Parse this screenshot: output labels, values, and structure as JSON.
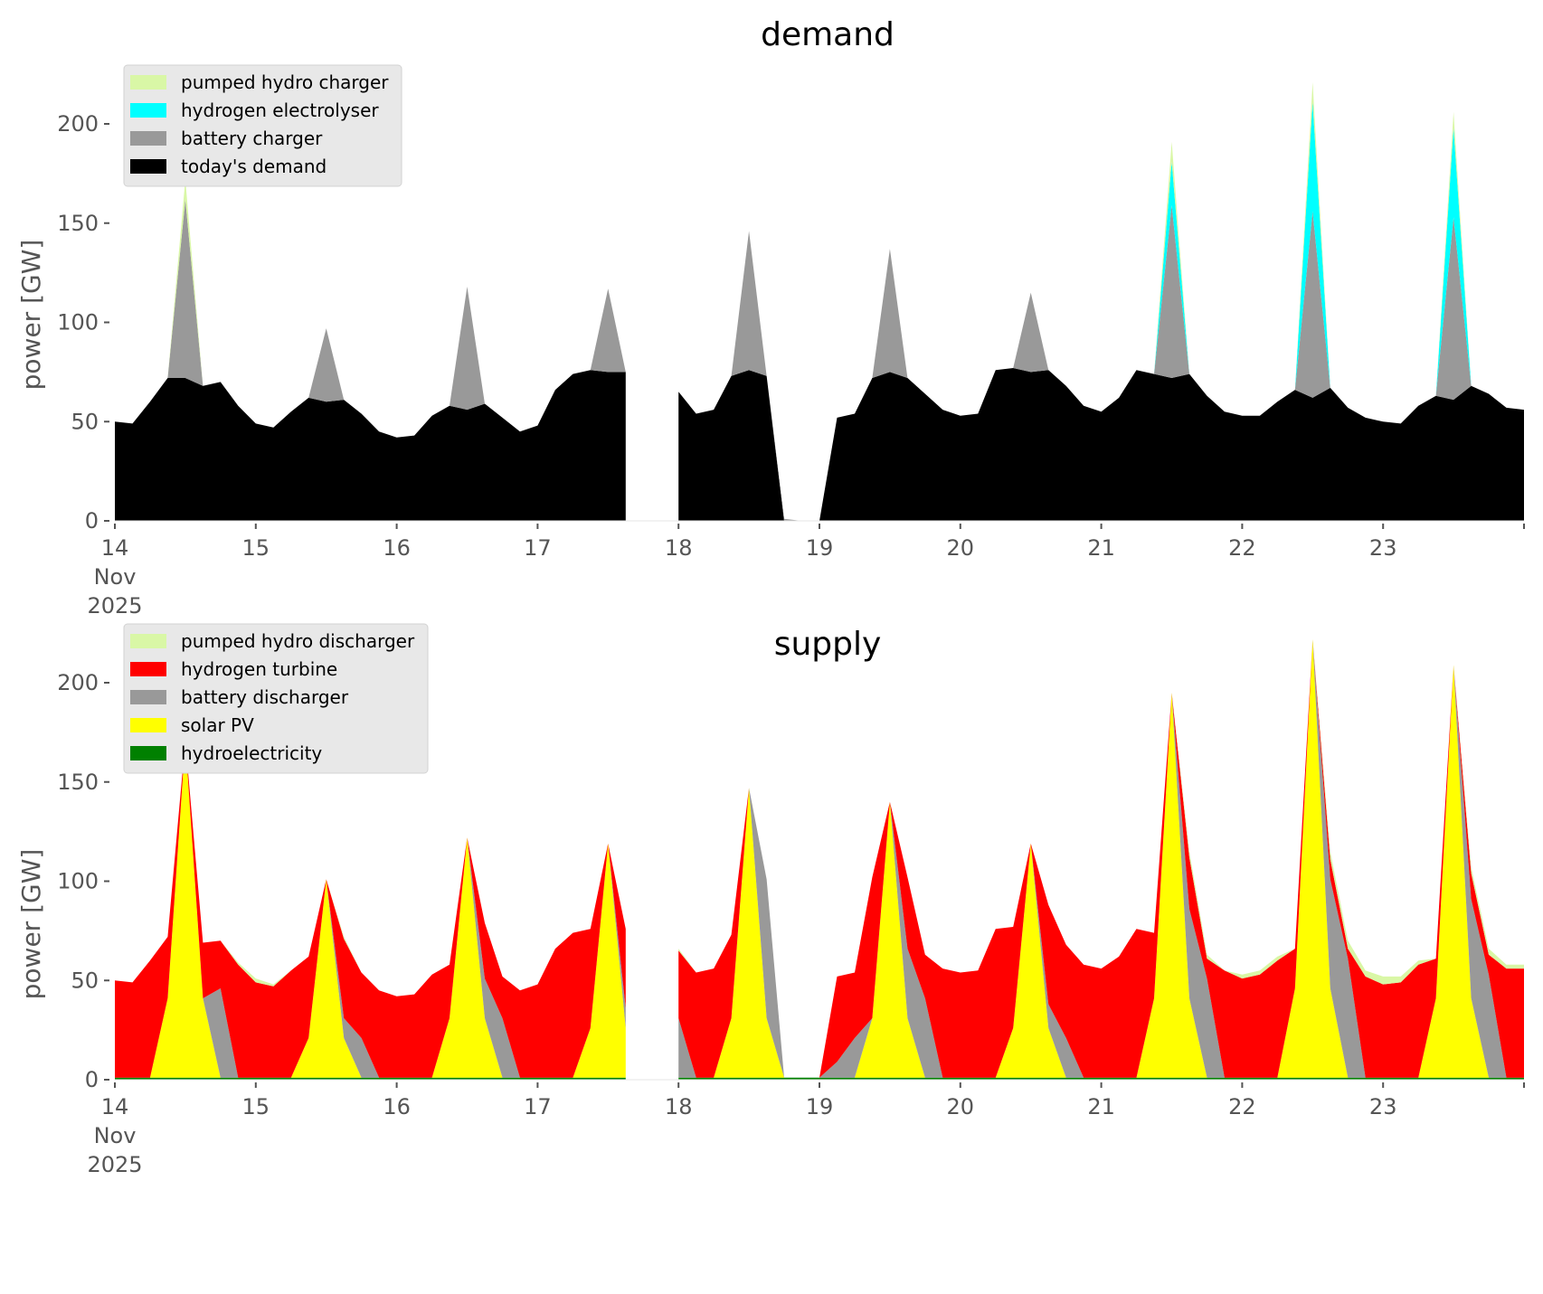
{
  "chart_data": [
    {
      "type": "area",
      "stacked": true,
      "title": "demand",
      "xlabel": "",
      "ylabel": "power [GW]",
      "x_unit": "day of Nov 2025 (3-hour steps from 14 Nov 00:00)",
      "x_start_day": 14,
      "x_end_day": 24,
      "step_hours": 3,
      "ylim": [
        0,
        228
      ],
      "yticks": [
        0,
        50,
        100,
        150,
        200
      ],
      "ytick_labels": [
        "0",
        "50",
        "100",
        "150",
        "200"
      ],
      "xticks": [
        14,
        15,
        16,
        17,
        18,
        19,
        20,
        21,
        22,
        23,
        24
      ],
      "xtick_labels": [
        "14\nNov\n2025",
        "15",
        "16",
        "17",
        "18",
        "19",
        "20",
        "21",
        "22",
        "23",
        ""
      ],
      "grid": false,
      "legend_position": "upper-left",
      "legend_order": [
        "pumped hydro charger",
        "hydrogen electrolyser",
        "battery charger",
        "today's demand"
      ],
      "series": [
        {
          "name": "today's demand",
          "color": "#000000",
          "values": [
            50,
            49,
            60,
            72,
            72,
            68,
            70,
            58,
            49,
            47,
            55,
            62,
            60,
            61,
            54,
            45,
            42,
            43,
            53,
            58,
            56,
            59,
            52,
            45,
            48,
            66,
            74,
            76,
            75,
            75,
            null,
            null,
            65,
            54,
            56,
            73,
            76,
            73,
            0,
            0,
            0,
            52,
            54,
            72,
            75,
            72,
            64,
            56,
            53,
            54,
            76,
            77,
            75,
            76,
            68,
            58,
            55,
            62,
            76,
            74,
            72,
            74,
            63,
            55,
            53,
            53,
            60,
            66,
            62,
            67,
            57,
            52,
            50,
            49,
            58,
            63,
            61,
            68,
            64,
            57,
            56
          ]
        },
        {
          "name": "battery charger",
          "color": "#999999",
          "values": [
            0,
            0,
            0,
            0,
            90,
            0,
            0,
            0,
            0,
            0,
            0,
            0,
            37,
            0,
            0,
            0,
            0,
            0,
            0,
            0,
            62,
            0,
            0,
            0,
            0,
            0,
            0,
            0,
            42,
            0,
            null,
            null,
            0,
            0,
            0,
            0,
            70,
            0,
            1,
            0,
            0,
            0,
            0,
            0,
            62,
            0,
            0,
            0,
            0,
            0,
            0,
            0,
            40,
            0,
            0,
            0,
            0,
            0,
            0,
            0,
            87,
            0,
            0,
            0,
            0,
            0,
            0,
            0,
            94,
            0,
            0,
            0,
            0,
            0,
            0,
            0,
            92,
            0,
            0,
            0,
            0
          ]
        },
        {
          "name": "hydrogen electrolyser",
          "color": "#00ffff",
          "values": [
            0,
            0,
            0,
            0,
            0,
            0,
            0,
            0,
            0,
            0,
            0,
            0,
            0,
            0,
            0,
            0,
            0,
            0,
            0,
            0,
            0,
            0,
            0,
            0,
            0,
            0,
            0,
            0,
            0,
            0,
            null,
            null,
            0,
            0,
            0,
            0,
            0,
            0,
            0,
            0,
            0,
            0,
            0,
            0,
            0,
            0,
            0,
            0,
            0,
            0,
            0,
            0,
            0,
            0,
            0,
            0,
            0,
            0,
            0,
            0,
            22,
            0,
            0,
            0,
            0,
            0,
            0,
            0,
            55,
            0,
            0,
            0,
            0,
            0,
            0,
            0,
            45,
            0,
            0,
            0,
            0
          ]
        },
        {
          "name": "pumped hydro charger",
          "color": "#d9f7a6",
          "values": [
            0,
            0,
            0,
            0,
            10,
            0,
            0,
            0,
            0,
            0,
            0,
            0,
            0,
            0,
            0,
            0,
            0,
            0,
            0,
            0,
            0,
            0,
            0,
            0,
            0,
            0,
            0,
            0,
            0,
            0,
            null,
            null,
            0,
            0,
            0,
            0,
            0,
            0,
            0,
            0,
            0,
            0,
            0,
            0,
            0,
            0,
            0,
            0,
            0,
            0,
            0,
            0,
            0,
            0,
            0,
            0,
            0,
            0,
            0,
            0,
            10,
            0,
            0,
            0,
            0,
            0,
            0,
            0,
            10,
            0,
            0,
            0,
            0,
            0,
            0,
            0,
            8,
            0,
            0,
            0,
            0
          ]
        }
      ]
    },
    {
      "type": "area",
      "stacked": true,
      "title": "supply",
      "xlabel": "",
      "ylabel": "power [GW]",
      "x_unit": "day of Nov 2025 (3-hour steps from 14 Nov 00:00)",
      "x_start_day": 14,
      "x_end_day": 24,
      "step_hours": 3,
      "ylim": [
        0,
        228
      ],
      "yticks": [
        0,
        50,
        100,
        150,
        200
      ],
      "ytick_labels": [
        "0",
        "50",
        "100",
        "150",
        "200"
      ],
      "xticks": [
        14,
        15,
        16,
        17,
        18,
        19,
        20,
        21,
        22,
        23,
        24
      ],
      "xtick_labels": [
        "14\nNov\n2025",
        "15",
        "16",
        "17",
        "18",
        "19",
        "20",
        "21",
        "22",
        "23",
        ""
      ],
      "grid": false,
      "legend_position": "upper-left",
      "legend_order": [
        "pumped hydro discharger",
        "hydrogen turbine",
        "battery discharger",
        "solar PV",
        "hydroelectricity"
      ],
      "series": [
        {
          "name": "hydroelectricity",
          "color": "#008000",
          "values": [
            1,
            1,
            1,
            1,
            1,
            1,
            1,
            1,
            1,
            1,
            1,
            1,
            1,
            1,
            1,
            1,
            1,
            1,
            1,
            1,
            1,
            1,
            1,
            1,
            1,
            1,
            1,
            1,
            1,
            1,
            null,
            null,
            1,
            1,
            1,
            1,
            1,
            1,
            1,
            1,
            1,
            1,
            1,
            1,
            1,
            1,
            1,
            1,
            1,
            1,
            1,
            1,
            1,
            1,
            1,
            1,
            1,
            1,
            1,
            1,
            1,
            1,
            1,
            1,
            1,
            1,
            1,
            1,
            1,
            1,
            1,
            1,
            1,
            1,
            1,
            1,
            1,
            1,
            1,
            1,
            1
          ]
        },
        {
          "name": "solar PV",
          "color": "#ffff00",
          "values": [
            0,
            0,
            0,
            40,
            170,
            40,
            0,
            0,
            0,
            0,
            0,
            20,
            100,
            20,
            0,
            0,
            0,
            0,
            0,
            30,
            121,
            30,
            0,
            0,
            0,
            0,
            0,
            25,
            118,
            25,
            null,
            null,
            0,
            0,
            0,
            30,
            146,
            30,
            0,
            0,
            0,
            0,
            0,
            30,
            139,
            30,
            0,
            0,
            0,
            0,
            0,
            25,
            118,
            25,
            0,
            0,
            0,
            0,
            0,
            40,
            194,
            40,
            0,
            0,
            0,
            0,
            0,
            45,
            221,
            45,
            0,
            0,
            0,
            0,
            0,
            40,
            208,
            40,
            0,
            0,
            0
          ]
        },
        {
          "name": "battery discharger",
          "color": "#999999",
          "values": [
            0,
            0,
            0,
            0,
            0,
            0,
            45,
            0,
            0,
            0,
            0,
            0,
            0,
            10,
            20,
            0,
            0,
            0,
            0,
            0,
            0,
            20,
            30,
            0,
            0,
            0,
            0,
            0,
            0,
            10,
            null,
            null,
            30,
            0,
            0,
            0,
            0,
            70,
            0,
            0,
            0,
            8,
            20,
            0,
            0,
            35,
            40,
            0,
            0,
            0,
            0,
            0,
            0,
            12,
            20,
            0,
            0,
            0,
            0,
            0,
            0,
            45,
            50,
            0,
            0,
            0,
            0,
            0,
            0,
            55,
            60,
            0,
            0,
            0,
            0,
            0,
            0,
            50,
            52,
            0,
            0
          ]
        },
        {
          "name": "hydrogen turbine",
          "color": "#ff0000",
          "values": [
            49,
            48,
            59,
            31,
            0,
            28,
            24,
            57,
            48,
            46,
            54,
            41,
            0,
            40,
            33,
            44,
            41,
            42,
            52,
            27,
            0,
            28,
            21,
            44,
            47,
            65,
            73,
            50,
            0,
            40,
            null,
            null,
            34,
            53,
            55,
            42,
            0,
            0,
            0,
            0,
            0,
            43,
            33,
            71,
            0,
            36,
            22,
            55,
            53,
            54,
            75,
            51,
            0,
            50,
            47,
            57,
            55,
            61,
            75,
            33,
            0,
            26,
            10,
            54,
            50,
            52,
            59,
            20,
            0,
            10,
            5,
            51,
            47,
            48,
            57,
            20,
            0,
            13,
            10,
            55,
            55
          ]
        },
        {
          "name": "pumped hydro discharger",
          "color": "#d9f7a6",
          "values": [
            0,
            0,
            0,
            0,
            0,
            0,
            0,
            1,
            2,
            1,
            0,
            0,
            0,
            1,
            0,
            0,
            0,
            0,
            0,
            0,
            0,
            0,
            0,
            0,
            0,
            0,
            0,
            0,
            0,
            0,
            null,
            null,
            1,
            0,
            0,
            0,
            0,
            0,
            0,
            0,
            0,
            0,
            0,
            0,
            0,
            0,
            0,
            0,
            0,
            0,
            0,
            0,
            0,
            0,
            0,
            0,
            0,
            0,
            0,
            0,
            0,
            3,
            2,
            0,
            2,
            2,
            2,
            0,
            0,
            4,
            4,
            3,
            4,
            3,
            2,
            0,
            0,
            3,
            3,
            2,
            2
          ]
        }
      ]
    }
  ]
}
